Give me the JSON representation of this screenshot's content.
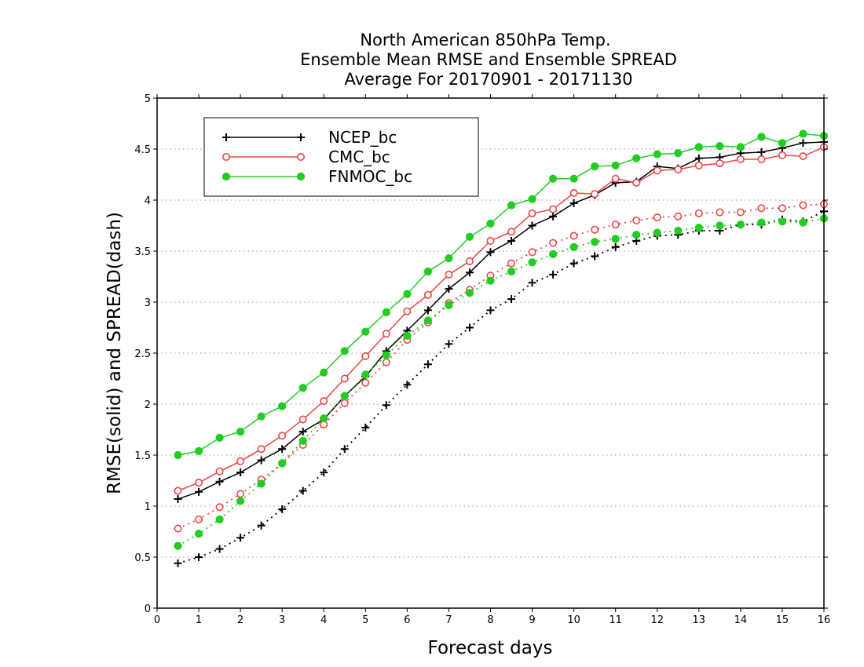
{
  "chart_data": {
    "type": "line",
    "title_lines": [
      "North American 850hPa Temp.",
      "Ensemble Mean RMSE and Ensemble SPREAD",
      "Average For 20170901 - 20171130"
    ],
    "xlabel": "Forecast days",
    "ylabel": "RMSE(solid) and SPREAD(dash)",
    "xlim": [
      0,
      16
    ],
    "ylim": [
      0,
      5
    ],
    "x_ticks": [
      "0",
      "1",
      "2",
      "3",
      "4",
      "5",
      "6",
      "7",
      "8",
      "9",
      "10",
      "11",
      "12",
      "13",
      "14",
      "15",
      "16"
    ],
    "y_ticks": [
      "0",
      "0.5",
      "1",
      "1.5",
      "2",
      "2.5",
      "3",
      "3.5",
      "4",
      "4.5",
      "5"
    ],
    "grid": "horizontal dotted",
    "legend_position": "top-left",
    "x": [
      0.5,
      1,
      1.5,
      2,
      2.5,
      3,
      3.5,
      4,
      4.5,
      5,
      5.5,
      6,
      6.5,
      7,
      7.5,
      8,
      8.5,
      9,
      9.5,
      10,
      10.5,
      11,
      11.5,
      12,
      12.5,
      13,
      13.5,
      14,
      14.5,
      15,
      15.5,
      16
    ],
    "series": [
      {
        "name": "NCEP_bc",
        "color": "#000000",
        "marker": "plus",
        "rmse": [
          1.07,
          1.14,
          1.24,
          1.33,
          1.45,
          1.56,
          1.73,
          1.85,
          2.08,
          2.27,
          2.52,
          2.72,
          2.92,
          3.13,
          3.29,
          3.49,
          3.6,
          3.75,
          3.84,
          3.97,
          4.05,
          4.17,
          4.18,
          4.33,
          4.31,
          4.41,
          4.42,
          4.46,
          4.47,
          4.51,
          4.56,
          4.57
        ],
        "spread": [
          0.44,
          0.5,
          0.58,
          0.69,
          0.81,
          0.97,
          1.15,
          1.33,
          1.56,
          1.77,
          1.99,
          2.19,
          2.39,
          2.59,
          2.75,
          2.92,
          3.03,
          3.19,
          3.27,
          3.38,
          3.45,
          3.54,
          3.6,
          3.65,
          3.66,
          3.7,
          3.7,
          3.76,
          3.76,
          3.81,
          3.79,
          3.89
        ]
      },
      {
        "name": "CMC_bc",
        "color": "#ee4444",
        "marker": "open-circle",
        "rmse": [
          1.15,
          1.23,
          1.34,
          1.44,
          1.56,
          1.69,
          1.85,
          2.03,
          2.25,
          2.47,
          2.69,
          2.91,
          3.07,
          3.27,
          3.4,
          3.6,
          3.69,
          3.87,
          3.91,
          4.07,
          4.06,
          4.21,
          4.17,
          4.29,
          4.3,
          4.34,
          4.36,
          4.4,
          4.4,
          4.44,
          4.43,
          4.52
        ],
        "spread": [
          0.78,
          0.87,
          0.99,
          1.12,
          1.26,
          1.42,
          1.6,
          1.8,
          2.01,
          2.21,
          2.41,
          2.63,
          2.8,
          2.99,
          3.12,
          3.26,
          3.38,
          3.49,
          3.58,
          3.65,
          3.71,
          3.76,
          3.8,
          3.83,
          3.84,
          3.87,
          3.88,
          3.88,
          3.92,
          3.92,
          3.95,
          3.96
        ]
      },
      {
        "name": "FNMOC_bc",
        "color": "#22cc22",
        "marker": "filled-circle",
        "rmse": [
          1.5,
          1.54,
          1.67,
          1.73,
          1.88,
          1.98,
          2.16,
          2.31,
          2.52,
          2.71,
          2.9,
          3.08,
          3.3,
          3.43,
          3.64,
          3.77,
          3.95,
          4.01,
          4.21,
          4.21,
          4.33,
          4.34,
          4.41,
          4.45,
          4.46,
          4.52,
          4.53,
          4.52,
          4.62,
          4.56,
          4.65,
          4.63
        ],
        "spread": [
          0.61,
          0.73,
          0.87,
          1.05,
          1.22,
          1.42,
          1.64,
          1.86,
          2.08,
          2.29,
          2.48,
          2.67,
          2.82,
          2.97,
          3.09,
          3.21,
          3.3,
          3.39,
          3.47,
          3.54,
          3.59,
          3.62,
          3.66,
          3.68,
          3.7,
          3.73,
          3.75,
          3.76,
          3.78,
          3.79,
          3.78,
          3.82
        ]
      }
    ]
  }
}
